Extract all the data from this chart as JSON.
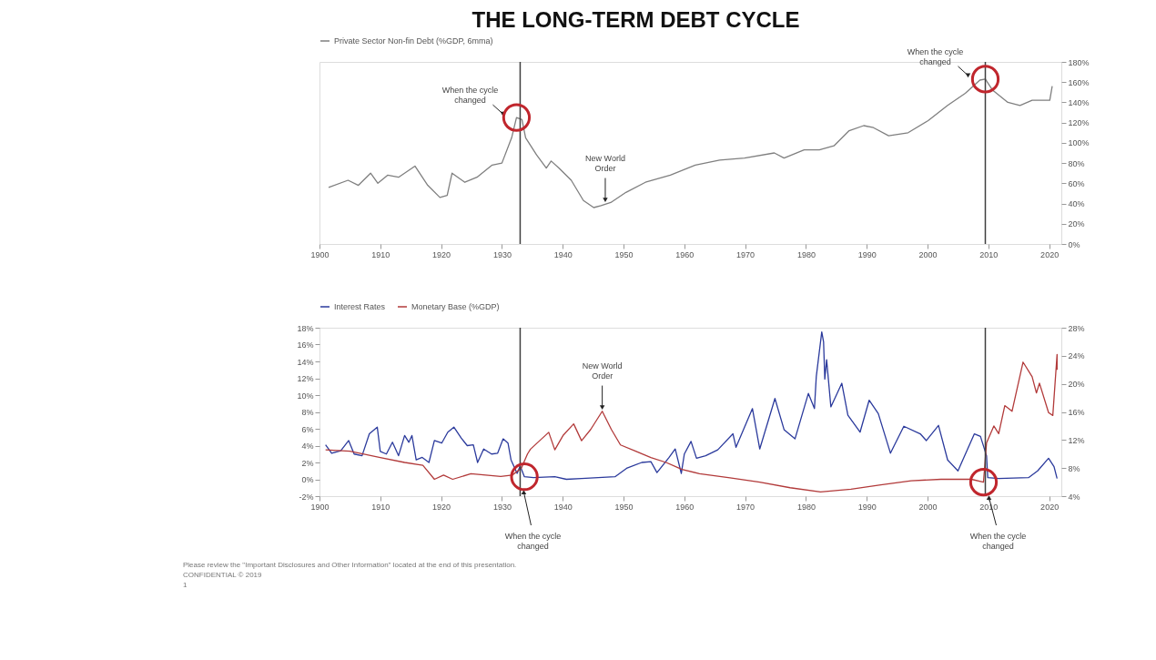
{
  "chart_data": [
    {
      "type": "line",
      "title": "THE LONG-TERM DEBT CYCLE",
      "legend": "top",
      "grid": false,
      "xlim": [
        1900,
        2022
      ],
      "xticks": [
        1900,
        1910,
        1920,
        1930,
        1940,
        1950,
        1960,
        1970,
        1980,
        1990,
        2000,
        2010,
        2020
      ],
      "ylim": [
        0,
        180
      ],
      "yticks": [
        {
          "value": 0,
          "label": "0%"
        },
        {
          "value": 20,
          "label": "20%"
        },
        {
          "value": 40,
          "label": "40%"
        },
        {
          "value": 60,
          "label": "60%"
        },
        {
          "value": 80,
          "label": "80%"
        },
        {
          "value": 100,
          "label": "100%"
        },
        {
          "value": 120,
          "label": "120%"
        },
        {
          "value": 140,
          "label": "140%"
        },
        {
          "value": 160,
          "label": "160%"
        },
        {
          "value": 180,
          "label": "180%"
        }
      ],
      "series": [
        {
          "name": "Private Sector Non-fin Debt (%GDP, 6mma)",
          "color": "#7f7f7f",
          "x": [
            1901.5,
            1904.7,
            1906.4,
            1908.4,
            1909.6,
            1911.2,
            1913,
            1915.7,
            1917.8,
            1919.8,
            1921,
            1921.8,
            1923.9,
            1925.9,
            1928.4,
            1930,
            1931.6,
            1932.4,
            1933.3,
            1933.9,
            1935.7,
            1937.3,
            1938.1,
            1939.4,
            1941.4,
            1943.4,
            1945.1,
            1946.3,
            1947.9,
            1950.4,
            1953.6,
            1957.7,
            1961.8,
            1965.8,
            1969.9,
            1974.8,
            1976.4,
            1979.7,
            1982.2,
            1984.6,
            1987.1,
            1989.5,
            1991.1,
            1993.6,
            1996.8,
            2000.1,
            2003.3,
            2006.2,
            2008.6,
            2009.5,
            2010.7,
            2013.2,
            2015.2,
            2017.2,
            2018.9,
            2020.1,
            2020.5
          ],
          "values": [
            56,
            63,
            58,
            70,
            60,
            68,
            66,
            77,
            58,
            46,
            48,
            70,
            61,
            66,
            78,
            80,
            105,
            125,
            123,
            105,
            88,
            75,
            82,
            75,
            63,
            43,
            36,
            38,
            41,
            51,
            61,
            68,
            78,
            83,
            85,
            90,
            85,
            93,
            93,
            97,
            112,
            117,
            115,
            107,
            110,
            122,
            137,
            149,
            162,
            163,
            152,
            140,
            137,
            142,
            142,
            142,
            156
          ]
        }
      ],
      "ref_lines": [
        {
          "axis": "x",
          "value": 1933,
          "color": "#3f3f3f",
          "label": "When the cycle changed"
        },
        {
          "axis": "x",
          "value": 2009.5,
          "color": "#3f3f3f",
          "label": "When the cycle changed"
        }
      ],
      "annotations": [
        {
          "text": "New World Order",
          "x": 1947,
          "y": 40
        }
      ]
    },
    {
      "type": "line",
      "legend": "top",
      "grid": false,
      "xlim": [
        1900,
        2022
      ],
      "xticks": [
        1900,
        1910,
        1920,
        1930,
        1940,
        1950,
        1960,
        1970,
        1980,
        1990,
        2000,
        2010,
        2020
      ],
      "ylim": [
        -2,
        18
      ],
      "yticks": [
        {
          "value": -2,
          "label": "-2%"
        },
        {
          "value": 0,
          "label": "0%"
        },
        {
          "value": 2,
          "label": "2%"
        },
        {
          "value": 4,
          "label": "4%"
        },
        {
          "value": 6,
          "label": "6%"
        },
        {
          "value": 8,
          "label": "8%"
        },
        {
          "value": 10,
          "label": "10%"
        },
        {
          "value": 12,
          "label": "12%"
        },
        {
          "value": 14,
          "label": "14%"
        },
        {
          "value": 16,
          "label": "16%"
        },
        {
          "value": 18,
          "label": "18%"
        }
      ],
      "y2lim": [
        4,
        28
      ],
      "y2ticks": [
        {
          "value": 4,
          "label": "4%"
        },
        {
          "value": 8,
          "label": "8%"
        },
        {
          "value": 12,
          "label": "12%"
        },
        {
          "value": 16,
          "label": "16%"
        },
        {
          "value": 20,
          "label": "20%"
        },
        {
          "value": 24,
          "label": "24%"
        },
        {
          "value": 28,
          "label": "28%"
        }
      ],
      "series": [
        {
          "name": "Interest Rates",
          "color": "#2b3a9c",
          "x": [
            1901,
            1902,
            1903.5,
            1904.8,
            1905.7,
            1907,
            1908.2,
            1909.5,
            1910,
            1911,
            1912,
            1913,
            1914,
            1914.7,
            1915.2,
            1915.9,
            1916.9,
            1918,
            1918.9,
            1920.1,
            1921.1,
            1922.1,
            1923.3,
            1924.3,
            1925.3,
            1926,
            1927,
            1928.3,
            1929.3,
            1930.2,
            1931,
            1931.5,
            1932.5,
            1933,
            1933.7,
            1935.2,
            1938.7,
            1940.6,
            1943.1,
            1948.6,
            1950.5,
            1953,
            1954.5,
            1955.5,
            1957.5,
            1958.5,
            1959.5,
            1960,
            1961.1,
            1962,
            1963.5,
            1965.5,
            1968,
            1968.5,
            1971.2,
            1972.4,
            1974.9,
            1976.4,
            1978.2,
            1980.4,
            1981.4,
            1981.7,
            1982.6,
            1982.9,
            1983.1,
            1983.4,
            1984.1,
            1985.9,
            1986.9,
            1988.9,
            1990.4,
            1991.9,
            1993.9,
            1996.1,
            1998.8,
            1999.8,
            2001.8,
            2003.3,
            2005,
            2007.7,
            2008.7,
            2009.7,
            2009.9,
            2011.7,
            2016.6,
            2018.1,
            2019.9,
            2020.8,
            2021.3
          ],
          "values": [
            4.1,
            3.1,
            3.4,
            4.6,
            3.0,
            2.8,
            5.4,
            6.2,
            3.3,
            3.0,
            4.4,
            2.8,
            5.2,
            4.4,
            5.2,
            2.3,
            2.6,
            2.0,
            4.6,
            4.3,
            5.6,
            6.2,
            4.9,
            4.0,
            4.1,
            2.0,
            3.6,
            3.0,
            3.1,
            4.8,
            4.3,
            2.3,
            0.7,
            1.6,
            0.3,
            0.2,
            0.3,
            0.0,
            0.1,
            0.3,
            1.3,
            2.0,
            2.1,
            0.8,
            2.6,
            3.6,
            0.7,
            3.0,
            4.5,
            2.5,
            2.8,
            3.5,
            5.4,
            3.8,
            8.4,
            3.6,
            9.6,
            5.9,
            4.8,
            10.2,
            8.4,
            12.2,
            17.5,
            16.3,
            11.9,
            14.2,
            8.6,
            11.4,
            7.6,
            5.6,
            9.4,
            7.8,
            3.1,
            6.3,
            5.4,
            4.6,
            6.4,
            2.3,
            1.0,
            5.4,
            5.1,
            2.8,
            0.2,
            0.1,
            0.2,
            1.0,
            2.5,
            1.5,
            0.1
          ]
        },
        {
          "name": "Monetary Base (%GDP)",
          "color": "#b23a3a",
          "axis": "y2",
          "x": [
            1901,
            1905,
            1910,
            1914,
            1917,
            1918.9,
            1920.4,
            1921.9,
            1924.9,
            1929.8,
            1931.7,
            1933.2,
            1934.2,
            1934.7,
            1936.2,
            1937.7,
            1938.7,
            1940.1,
            1941.8,
            1943.1,
            1944.6,
            1946.5,
            1948,
            1949.5,
            1952,
            1954.5,
            1957,
            1959.6,
            1962.5,
            1967.5,
            1972.4,
            1977.4,
            1982.4,
            1987.4,
            1992.3,
            1997.3,
            2002.2,
            2007.2,
            2009.2,
            2009.7,
            2010.9,
            2011.7,
            2012.7,
            2013.9,
            2015.7,
            2017.2,
            2017.9,
            2018.4,
            2019.9,
            2020.6,
            2021.3,
            2021.3
          ],
          "values": [
            10.6,
            10.4,
            9.5,
            8.8,
            8.4,
            6.4,
            7.0,
            6.4,
            7.2,
            6.8,
            7.0,
            8.0,
            10.0,
            10.7,
            11.9,
            13.1,
            10.6,
            12.7,
            14.3,
            11.9,
            13.5,
            16.1,
            13.5,
            11.3,
            10.4,
            9.5,
            8.8,
            7.8,
            7.2,
            6.6,
            6.0,
            5.2,
            4.6,
            5.0,
            5.6,
            6.2,
            6.4,
            6.4,
            6.0,
            11.6,
            14.0,
            12.9,
            16.9,
            16.1,
            23.1,
            21.0,
            18.7,
            20.1,
            15.9,
            15.5,
            24.2,
            22.0
          ]
        }
      ],
      "ref_lines": [
        {
          "axis": "x",
          "value": 1933,
          "color": "#3f3f3f",
          "label": "When the cycle changed"
        },
        {
          "axis": "x",
          "value": 2009.5,
          "color": "#3f3f3f",
          "label": "When the cycle changed"
        }
      ],
      "annotations": [
        {
          "text": "New World Order",
          "x": 1946.5,
          "y": 8.1
        },
        "Please review the \"Important Disclosures and Other Information\" located at the end of this presentation.",
        "CONFIDENTIAL © 2019",
        "1"
      ]
    }
  ]
}
